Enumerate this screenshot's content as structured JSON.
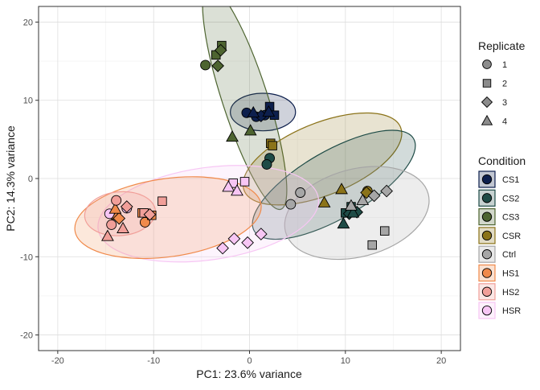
{
  "chart_data": {
    "type": "scatter",
    "xlabel": "PC1: 23.6% variance",
    "ylabel": "PC2: 14.3% variance",
    "xlim": [
      -22,
      22
    ],
    "ylim": [
      -22,
      22
    ],
    "x_ticks": [
      -20,
      -10,
      0,
      10,
      20
    ],
    "y_ticks": [
      -20,
      -10,
      0,
      10,
      20
    ],
    "grid": true,
    "legend_placement": "right",
    "shape_legend": {
      "title": "Replicate",
      "items": [
        {
          "label": "1",
          "shape": "circle"
        },
        {
          "label": "2",
          "shape": "square"
        },
        {
          "label": "3",
          "shape": "diamond"
        },
        {
          "label": "4",
          "shape": "triangle"
        }
      ]
    },
    "color_legend": {
      "title": "Condition",
      "items": [
        {
          "label": "CS1",
          "color": "#0d1f4d"
        },
        {
          "label": "CS2",
          "color": "#1e4b46"
        },
        {
          "label": "CS3",
          "color": "#4d6430"
        },
        {
          "label": "CSR",
          "color": "#8b7319"
        },
        {
          "label": "Ctrl",
          "color": "#a6a6a6"
        },
        {
          "label": "HS1",
          "color": "#f08a4b"
        },
        {
          "label": "HS2",
          "color": "#f19f99"
        },
        {
          "label": "HSR",
          "color": "#f7c6f4"
        }
      ]
    },
    "ellipses": [
      {
        "condition": "CS1",
        "cx": 1.4,
        "cy": 8.5,
        "rx": 3.4,
        "ry": 2.4,
        "angle": 0
      },
      {
        "condition": "CS3",
        "cx": -0.5,
        "cy": 10.3,
        "rx": 12.2,
        "ry": 2.9,
        "angle": 72
      },
      {
        "condition": "CSR",
        "cx": 7.6,
        "cy": 2.5,
        "rx": 8.8,
        "ry": 4.6,
        "angle": -22
      },
      {
        "condition": "CS2",
        "cx": 8.8,
        "cy": -0.8,
        "rx": 9.6,
        "ry": 4.3,
        "angle": -30
      },
      {
        "condition": "Ctrl",
        "cx": 11.2,
        "cy": -4.4,
        "rx": 7.7,
        "ry": 5.6,
        "angle": -15
      },
      {
        "condition": "HSR",
        "cx": -4.3,
        "cy": -4.5,
        "rx": 11.6,
        "ry": 5.9,
        "angle": -8
      },
      {
        "condition": "HS1",
        "cx": -8.5,
        "cy": -5.0,
        "rx": 9.8,
        "ry": 5.0,
        "angle": -8
      },
      {
        "condition": "HS2",
        "cx": -13.5,
        "cy": -4.5,
        "rx": 3.7,
        "ry": 2.8,
        "angle": -5
      }
    ],
    "points": [
      {
        "condition": "CS3",
        "replicate": "1",
        "x": -4.6,
        "y": 14.5
      },
      {
        "condition": "CS3",
        "replicate": "2",
        "x": -2.9,
        "y": 17.0
      },
      {
        "condition": "CS3",
        "replicate": "2",
        "x": -3.5,
        "y": 15.8
      },
      {
        "condition": "CS3",
        "replicate": "3",
        "x": -3.3,
        "y": 14.4
      },
      {
        "condition": "CS3",
        "replicate": "3",
        "x": -3.0,
        "y": 16.4
      },
      {
        "condition": "CS3",
        "replicate": "4",
        "x": -1.8,
        "y": 5.3
      },
      {
        "condition": "CS3",
        "replicate": "4",
        "x": 0.1,
        "y": 6.1
      },
      {
        "condition": "CS1",
        "replicate": "1",
        "x": -0.3,
        "y": 8.4
      },
      {
        "condition": "CS1",
        "replicate": "1",
        "x": 0.7,
        "y": 7.9
      },
      {
        "condition": "CS1",
        "replicate": "1",
        "x": 1.6,
        "y": 8.1
      },
      {
        "condition": "CS1",
        "replicate": "2",
        "x": 2.1,
        "y": 9.2
      },
      {
        "condition": "CS1",
        "replicate": "2",
        "x": 2.6,
        "y": 8.1
      },
      {
        "condition": "CS1",
        "replicate": "3",
        "x": 1.2,
        "y": 8.0
      },
      {
        "condition": "CS1",
        "replicate": "4",
        "x": 0.4,
        "y": 8.4
      },
      {
        "condition": "CS1",
        "replicate": "4",
        "x": 2.0,
        "y": 8.5
      },
      {
        "condition": "CSR",
        "replicate": "2",
        "x": 2.2,
        "y": 4.5
      },
      {
        "condition": "CSR",
        "replicate": "2",
        "x": 2.4,
        "y": 4.2
      },
      {
        "condition": "CSR",
        "replicate": "4",
        "x": 7.8,
        "y": -3.1
      },
      {
        "condition": "CSR",
        "replicate": "4",
        "x": 9.6,
        "y": -1.4
      },
      {
        "condition": "CSR",
        "replicate": "1",
        "x": 12.3,
        "y": -1.6
      },
      {
        "condition": "CSR",
        "replicate": "3",
        "x": 12.2,
        "y": -1.8
      },
      {
        "condition": "CS2",
        "replicate": "1",
        "x": 2.1,
        "y": 2.6
      },
      {
        "condition": "CS2",
        "replicate": "1",
        "x": 1.8,
        "y": 1.8
      },
      {
        "condition": "CS2",
        "replicate": "2",
        "x": 10.0,
        "y": -4.4
      },
      {
        "condition": "CS2",
        "replicate": "2",
        "x": 10.6,
        "y": -3.6
      },
      {
        "condition": "CS2",
        "replicate": "3",
        "x": 10.4,
        "y": -4.5
      },
      {
        "condition": "CS2",
        "replicate": "3",
        "x": 11.2,
        "y": -4.3
      },
      {
        "condition": "CS2",
        "replicate": "4",
        "x": 9.8,
        "y": -5.8
      },
      {
        "condition": "CS2",
        "replicate": "4",
        "x": 10.8,
        "y": -4.4
      },
      {
        "condition": "Ctrl",
        "replicate": "1",
        "x": 5.3,
        "y": -1.8
      },
      {
        "condition": "Ctrl",
        "replicate": "1",
        "x": 4.3,
        "y": -3.3
      },
      {
        "condition": "Ctrl",
        "replicate": "2",
        "x": 12.8,
        "y": -8.5
      },
      {
        "condition": "Ctrl",
        "replicate": "2",
        "x": 14.1,
        "y": -6.7
      },
      {
        "condition": "Ctrl",
        "replicate": "3",
        "x": 13.0,
        "y": -2.2
      },
      {
        "condition": "Ctrl",
        "replicate": "3",
        "x": 14.3,
        "y": -1.6
      },
      {
        "condition": "Ctrl",
        "replicate": "4",
        "x": 10.6,
        "y": -3.5
      },
      {
        "condition": "Ctrl",
        "replicate": "4",
        "x": 11.8,
        "y": -2.8
      },
      {
        "condition": "HSR",
        "replicate": "1",
        "x": -14.6,
        "y": -4.5
      },
      {
        "condition": "HSR",
        "replicate": "1",
        "x": -12.8,
        "y": -3.8
      },
      {
        "condition": "HSR",
        "replicate": "2",
        "x": -1.7,
        "y": -0.6
      },
      {
        "condition": "HSR",
        "replicate": "2",
        "x": -0.5,
        "y": -0.4
      },
      {
        "condition": "HSR",
        "replicate": "3",
        "x": -0.2,
        "y": -8.2
      },
      {
        "condition": "HSR",
        "replicate": "3",
        "x": 1.2,
        "y": -7.1
      },
      {
        "condition": "HSR",
        "replicate": "4",
        "x": -2.2,
        "y": -1.1
      },
      {
        "condition": "HSR",
        "replicate": "4",
        "x": -1.3,
        "y": -1.6
      },
      {
        "condition": "HSR",
        "replicate": "3",
        "x": -2.8,
        "y": -8.9
      },
      {
        "condition": "HSR",
        "replicate": "3",
        "x": -1.6,
        "y": -7.7
      },
      {
        "condition": "HS1",
        "replicate": "1",
        "x": -10.9,
        "y": -5.6
      },
      {
        "condition": "HS1",
        "replicate": "2",
        "x": -11.2,
        "y": -4.4
      },
      {
        "condition": "HS1",
        "replicate": "4",
        "x": -13.8,
        "y": -4.7
      },
      {
        "condition": "HS1",
        "replicate": "2",
        "x": -10.2,
        "y": -4.7
      },
      {
        "condition": "HS1",
        "replicate": "3",
        "x": -13.6,
        "y": -5.1
      },
      {
        "condition": "HS1",
        "replicate": "4",
        "x": -14.0,
        "y": -3.9
      },
      {
        "condition": "HS2",
        "replicate": "1",
        "x": -13.9,
        "y": -2.8
      },
      {
        "condition": "HS2",
        "replicate": "1",
        "x": -14.4,
        "y": -5.9
      },
      {
        "condition": "HS2",
        "replicate": "2",
        "x": -9.1,
        "y": -2.9
      },
      {
        "condition": "HS2",
        "replicate": "2",
        "x": -11.0,
        "y": -4.4
      },
      {
        "condition": "HS2",
        "replicate": "3",
        "x": -10.4,
        "y": -4.6
      },
      {
        "condition": "HS2",
        "replicate": "3",
        "x": -12.8,
        "y": -3.6
      },
      {
        "condition": "HS2",
        "replicate": "4",
        "x": -14.8,
        "y": -7.4
      },
      {
        "condition": "HS2",
        "replicate": "4",
        "x": -13.2,
        "y": -6.4
      }
    ]
  }
}
